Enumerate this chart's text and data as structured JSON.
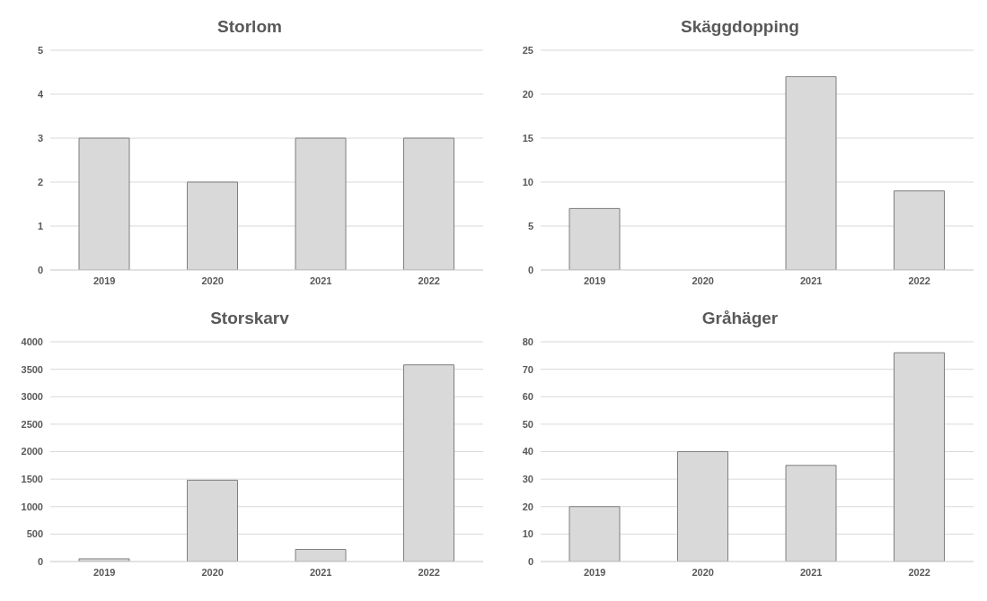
{
  "chart_data": [
    {
      "type": "bar",
      "title": "Storlom",
      "categories": [
        "2019",
        "2020",
        "2021",
        "2022"
      ],
      "values": [
        3,
        2,
        3,
        3
      ],
      "color": "#d9d9d9",
      "ylim": [
        0,
        5
      ],
      "yticks": [
        0,
        1,
        2,
        3,
        4,
        5
      ],
      "grid": "y",
      "legend": false
    },
    {
      "type": "bar",
      "title": "Skäggdopping",
      "categories": [
        "2019",
        "2020",
        "2021",
        "2022"
      ],
      "values": [
        7,
        0,
        22,
        9
      ],
      "color": "#d9d9d9",
      "ylim": [
        0,
        25
      ],
      "yticks": [
        0,
        5,
        10,
        15,
        20,
        25
      ],
      "grid": "y",
      "legend": false
    },
    {
      "type": "bar",
      "title": "Storskarv",
      "categories": [
        "2019",
        "2020",
        "2021",
        "2022"
      ],
      "values": [
        50,
        1480,
        220,
        3580
      ],
      "color": "#d9d9d9",
      "ylim": [
        0,
        4000
      ],
      "yticks": [
        0,
        500,
        1000,
        1500,
        2000,
        2500,
        3000,
        3500,
        4000
      ],
      "grid": "y",
      "legend": false
    },
    {
      "type": "bar",
      "title": "Gråhäger",
      "categories": [
        "2019",
        "2020",
        "2021",
        "2022"
      ],
      "values": [
        20,
        40,
        35,
        76
      ],
      "color": "#d9d9d9",
      "ylim": [
        0,
        80
      ],
      "yticks": [
        0,
        10,
        20,
        30,
        40,
        50,
        60,
        70,
        80
      ],
      "grid": "y",
      "legend": false
    }
  ]
}
